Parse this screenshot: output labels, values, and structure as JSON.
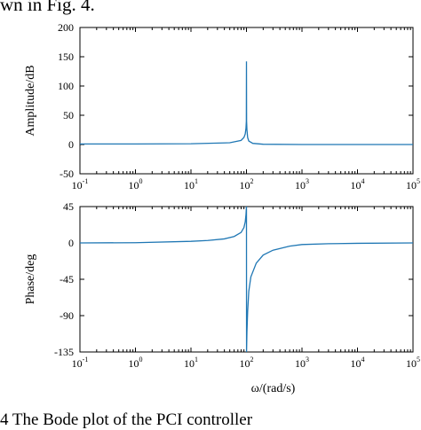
{
  "top_text": "wn in Fig. 4.",
  "caption": "4    The Bode plot of the PCI controller",
  "colors": {
    "line": "#1f77b4",
    "axis": "#000000"
  },
  "chart_data": [
    {
      "type": "line",
      "xscale": "log",
      "xlim": [
        0.1,
        100000
      ],
      "ylim": [
        -50,
        200
      ],
      "ylabel": "Amplitude/dB",
      "xlabel": "",
      "yticks": [
        "200",
        "150",
        "100",
        "50",
        "0",
        "-50"
      ],
      "ytick_values": [
        200,
        150,
        100,
        50,
        0,
        -50
      ],
      "xtick_exponents": [
        "-1",
        "0",
        "1",
        "2",
        "3",
        "4",
        "5"
      ],
      "xtick_base": "10",
      "series": [
        {
          "x": [
            0.1,
            1,
            10,
            50,
            80,
            90,
            95,
            98,
            99.5,
            100,
            100.5,
            102,
            105,
            110,
            130,
            200,
            1000,
            10000,
            100000
          ],
          "y": [
            1,
            1,
            1.3,
            3,
            7,
            12,
            18,
            28,
            40,
            142,
            40,
            25,
            12,
            6,
            2,
            0.5,
            0,
            0,
            0
          ]
        }
      ]
    },
    {
      "type": "line",
      "xscale": "log",
      "xlim": [
        0.1,
        100000
      ],
      "ylim": [
        -135,
        45
      ],
      "ylabel": "Phase/deg",
      "xlabel": "ω/(rad/s)",
      "yticks": [
        "45",
        "0",
        "-45",
        "-90",
        "-135"
      ],
      "ytick_values": [
        45,
        0,
        -45,
        -90,
        -135
      ],
      "xtick_exponents": [
        "-1",
        "0",
        "1",
        "2",
        "3",
        "4",
        "5"
      ],
      "xtick_base": "10",
      "series": [
        {
          "x": [
            0.1,
            1,
            10,
            20,
            40,
            60,
            80,
            90,
            95,
            98,
            99.7,
            100,
            100.3,
            102,
            105,
            110,
            120,
            150,
            200,
            300,
            600,
            1000,
            3000,
            10000,
            100000
          ],
          "y": [
            0,
            0.3,
            2,
            3,
            5,
            8,
            13,
            19,
            26,
            35,
            44,
            45,
            -135,
            -110,
            -85,
            -60,
            -42,
            -25,
            -15,
            -9,
            -4,
            -2,
            -1,
            -0.5,
            0
          ]
        }
      ]
    }
  ]
}
